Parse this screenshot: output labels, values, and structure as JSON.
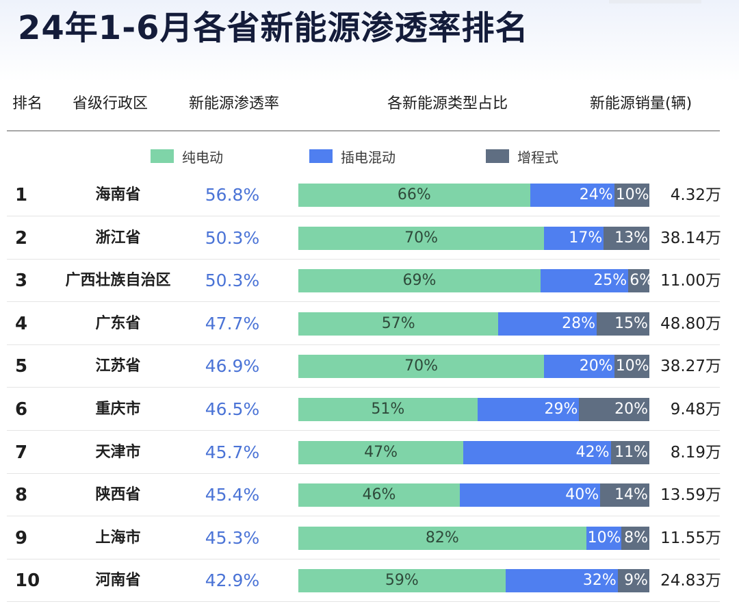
{
  "title": "24年1-6月各省新能源渗透率排名",
  "headers": {
    "rank": "排名",
    "province": "省级行政区",
    "penetration": "新能源渗透率",
    "mix": "各新能源类型占比",
    "sales": "新能源销量(辆)"
  },
  "legend": [
    {
      "label": "纯电动",
      "color": "#7fd4a8"
    },
    {
      "label": "插电混动",
      "color": "#4f7ff0"
    },
    {
      "label": "增程式",
      "color": "#5f6e82"
    }
  ],
  "rows": [
    {
      "rank": "1",
      "province": "海南省",
      "penetration": "56.8%",
      "bev": "66%",
      "phev": "24%",
      "erev": "10%",
      "sales": "4.32万"
    },
    {
      "rank": "2",
      "province": "浙江省",
      "penetration": "50.3%",
      "bev": "70%",
      "phev": "17%",
      "erev": "13%",
      "sales": "38.14万"
    },
    {
      "rank": "3",
      "province": "广西壮族自治区",
      "penetration": "50.3%",
      "bev": "69%",
      "phev": "25%",
      "erev": "6%",
      "sales": "11.00万"
    },
    {
      "rank": "4",
      "province": "广东省",
      "penetration": "47.7%",
      "bev": "57%",
      "phev": "28%",
      "erev": "15%",
      "sales": "48.80万"
    },
    {
      "rank": "5",
      "province": "江苏省",
      "penetration": "46.9%",
      "bev": "70%",
      "phev": "20%",
      "erev": "10%",
      "sales": "38.27万"
    },
    {
      "rank": "6",
      "province": "重庆市",
      "penetration": "46.5%",
      "bev": "51%",
      "phev": "29%",
      "erev": "20%",
      "sales": "9.48万"
    },
    {
      "rank": "7",
      "province": "天津市",
      "penetration": "45.7%",
      "bev": "47%",
      "phev": "42%",
      "erev": "11%",
      "sales": "8.19万"
    },
    {
      "rank": "8",
      "province": "陕西省",
      "penetration": "45.4%",
      "bev": "46%",
      "phev": "40%",
      "erev": "14%",
      "sales": "13.59万"
    },
    {
      "rank": "9",
      "province": "上海市",
      "penetration": "45.3%",
      "bev": "82%",
      "phev": "10%",
      "erev": "8%",
      "sales": "11.55万"
    },
    {
      "rank": "10",
      "province": "河南省",
      "penetration": "42.9%",
      "bev": "59%",
      "phev": "32%",
      "erev": "9%",
      "sales": "24.83万"
    }
  ],
  "chart_data": {
    "type": "bar",
    "stacked": true,
    "orientation": "horizontal",
    "title": "24年1-6月各省新能源渗透率排名",
    "categories": [
      "海南省",
      "浙江省",
      "广西壮族自治区",
      "广东省",
      "江苏省",
      "重庆市",
      "天津市",
      "陕西省",
      "上海市",
      "河南省"
    ],
    "series": [
      {
        "name": "纯电动",
        "values": [
          66,
          70,
          69,
          57,
          70,
          51,
          47,
          46,
          82,
          59
        ]
      },
      {
        "name": "插电混动",
        "values": [
          24,
          17,
          25,
          28,
          20,
          29,
          42,
          40,
          10,
          32
        ]
      },
      {
        "name": "增程式",
        "values": [
          10,
          13,
          6,
          15,
          10,
          20,
          11,
          14,
          8,
          9
        ]
      }
    ],
    "penetration_rate_percent": [
      56.8,
      50.3,
      50.3,
      47.7,
      46.9,
      46.5,
      45.7,
      45.4,
      45.3,
      42.9
    ],
    "sales_wan": [
      4.32,
      38.14,
      11.0,
      48.8,
      38.27,
      9.48,
      8.19,
      13.59,
      11.55,
      24.83
    ],
    "xlim": [
      0,
      100
    ],
    "legend_position": "top",
    "grid": false
  }
}
